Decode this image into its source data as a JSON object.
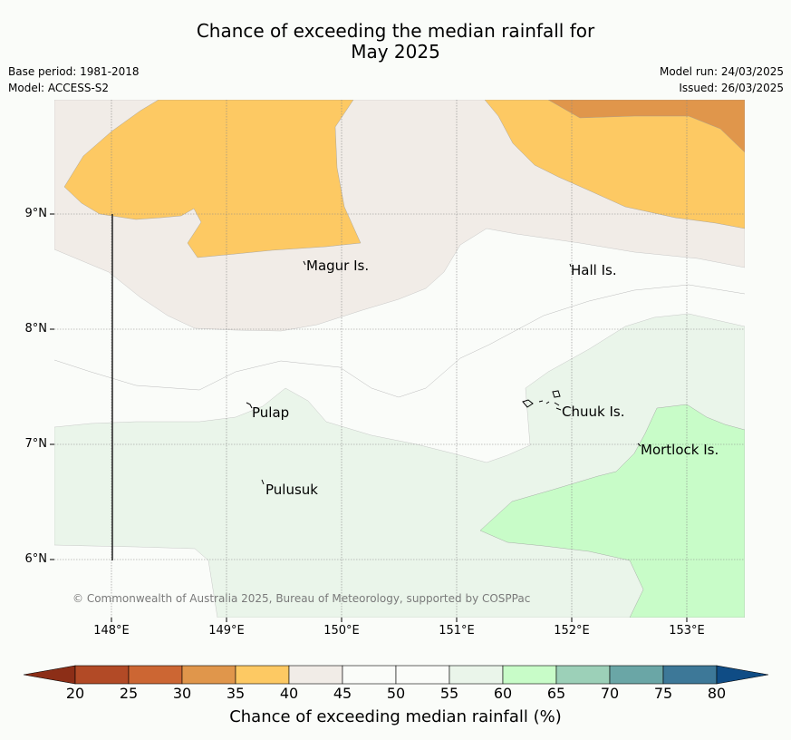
{
  "title_line1": "Chance of exceeding the median rainfall for",
  "title_line2": "May 2025",
  "meta_left": [
    "Base period: 1981-2018",
    "Model: ACCESS-S2"
  ],
  "meta_right": [
    "Model run: 24/03/2025",
    "Issued: 26/03/2025"
  ],
  "lat_labels": [
    "9°N",
    "8°N",
    "7°N",
    "6°N"
  ],
  "lon_labels": [
    "148°E",
    "149°E",
    "150°E",
    "151°E",
    "152°E",
    "153°E"
  ],
  "places": [
    "Magur Is.",
    "Hall Is.",
    "Pulap",
    "Chuuk Is.",
    "Mortlock Is.",
    "Pulusuk"
  ],
  "copyright": "© Commonwealth of Australia 2025, Bureau of Meteorology, supported by COSPPac",
  "colorbar": {
    "ticks": [
      "20",
      "25",
      "30",
      "35",
      "40",
      "45",
      "50",
      "55",
      "60",
      "65",
      "70",
      "75",
      "80"
    ],
    "colors": [
      "#b24a26",
      "#cc6633",
      "#e0964b",
      "#fdc963",
      "#f1ece7",
      "#fafcf9",
      "#fafcf9",
      "#eaf5ea",
      "#c8fcc8",
      "#9cd0b8",
      "#6aa6a6",
      "#3d7898"
    ],
    "under_color": "#8c2e17",
    "over_color": "#0f4c85",
    "label": "Chance of exceeding median rainfall (%)"
  },
  "colors": {
    "band_35_40": "#fdc963",
    "band_40_45": "#f1ece7",
    "band_45_55": "#fafcf9",
    "band_55_60": "#eaf5ea",
    "band_60_65": "#c8fcc8",
    "band_30_35": "#e0964b"
  }
}
